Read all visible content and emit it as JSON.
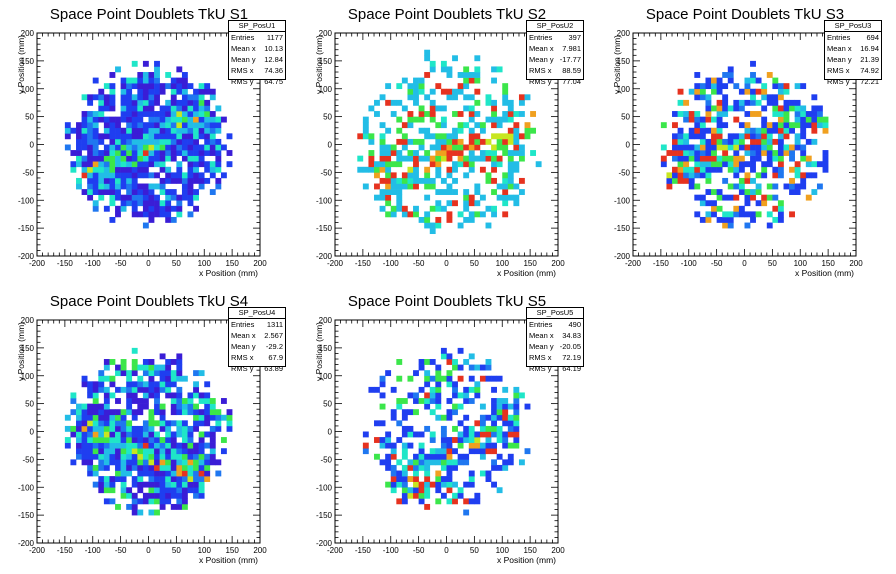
{
  "colors": {
    "palette": [
      "#3a1dd6",
      "#1f3ef0",
      "#1f77f0",
      "#22bde6",
      "#1fe6c8",
      "#3be64a",
      "#c8e61f",
      "#f0a01f",
      "#e6321f"
    ]
  },
  "chart_data": [
    {
      "type": "heatmap",
      "title": "Space Point Doublets TkU S1",
      "xlabel": "x Position (mm)",
      "ylabel": "y Position (mm)",
      "xlim": [
        -200,
        200
      ],
      "ylim": [
        -200,
        200
      ],
      "xticks": [
        "-200",
        "-150",
        "-100",
        "-50",
        "0",
        "50",
        "100",
        "150",
        "200"
      ],
      "yticks": [
        "-200",
        "-150",
        "-100",
        "-50",
        "0",
        "50",
        "100",
        "150",
        "200"
      ],
      "stats": {
        "name": "SP_PosU1",
        "rows": [
          [
            "Entries",
            "1177"
          ],
          [
            "Mean x",
            "10.13"
          ],
          [
            "Mean y",
            "12.84"
          ],
          [
            "RMS x",
            "74.36"
          ],
          [
            "RMS y",
            "64.75"
          ]
        ]
      },
      "seed": 11,
      "density": 0.72,
      "spread": 130,
      "band": {
        "angle": 0.55,
        "cx": 0,
        "cy": 0,
        "width": 40
      },
      "levels": [
        0,
        0,
        0,
        1,
        1,
        1,
        1,
        2,
        3,
        4
      ]
    },
    {
      "type": "heatmap",
      "title": "Space Point Doublets TkU S2",
      "xlabel": "x Position (mm)",
      "ylabel": "y Position (mm)",
      "xlim": [
        -200,
        200
      ],
      "ylim": [
        -200,
        200
      ],
      "xticks": [
        "-200",
        "-150",
        "-100",
        "-50",
        "0",
        "50",
        "100",
        "150",
        "200"
      ],
      "yticks": [
        "-200",
        "-150",
        "-100",
        "-50",
        "0",
        "50",
        "100",
        "150",
        "200"
      ],
      "stats": {
        "name": "SP_PosU2",
        "rows": [
          [
            "Entries",
            "397"
          ],
          [
            "Mean x",
            "7.981"
          ],
          [
            "Mean y",
            "-17.77"
          ],
          [
            "RMS x",
            "88.59"
          ],
          [
            "RMS y",
            "77.04"
          ]
        ]
      },
      "seed": 23,
      "density": 0.38,
      "spread": 150,
      "band": {
        "angle": 0.35,
        "cx": 0,
        "cy": -20,
        "width": 35
      },
      "levels": [
        3,
        3,
        3,
        3,
        3,
        4,
        5,
        5,
        8
      ]
    },
    {
      "type": "heatmap",
      "title": "Space Point Doublets TkU S3",
      "xlabel": "x Position (mm)",
      "ylabel": "y Position (mm)",
      "xlim": [
        -200,
        200
      ],
      "ylim": [
        -200,
        200
      ],
      "xticks": [
        "-200",
        "-150",
        "-100",
        "-50",
        "0",
        "50",
        "100",
        "150",
        "200"
      ],
      "yticks": [
        "-200",
        "-150",
        "-100",
        "-50",
        "0",
        "50",
        "100",
        "150",
        "200"
      ],
      "stats": {
        "name": "SP_PosU3",
        "rows": [
          [
            "Entries",
            "694"
          ],
          [
            "Mean x",
            "16.94"
          ],
          [
            "Mean y",
            "21.39"
          ],
          [
            "RMS x",
            "74.92"
          ],
          [
            "RMS y",
            "72.21"
          ]
        ]
      },
      "seed": 37,
      "density": 0.55,
      "spread": 135,
      "band": {
        "angle": 0.3,
        "cx": 20,
        "cy": 0,
        "width": 30
      },
      "levels": [
        1,
        1,
        1,
        1,
        2,
        3,
        4,
        5,
        7,
        8
      ]
    },
    {
      "type": "heatmap",
      "title": "Space Point Doublets TkU S4",
      "xlabel": "x Position (mm)",
      "ylabel": "y Position (mm)",
      "xlim": [
        -200,
        200
      ],
      "ylim": [
        -200,
        200
      ],
      "xticks": [
        "-200",
        "-150",
        "-100",
        "-50",
        "0",
        "50",
        "100",
        "150",
        "200"
      ],
      "yticks": [
        "-200",
        "-150",
        "-100",
        "-50",
        "0",
        "50",
        "100",
        "150",
        "200"
      ],
      "stats": {
        "name": "SP_PosU4",
        "rows": [
          [
            "Entries",
            "1311"
          ],
          [
            "Mean x",
            "2.567"
          ],
          [
            "Mean y",
            "-29.2"
          ],
          [
            "RMS x",
            "67.9"
          ],
          [
            "RMS y",
            "63.89"
          ]
        ]
      },
      "seed": 41,
      "density": 0.72,
      "spread": 130,
      "band": {
        "angle": -0.35,
        "cx": 0,
        "cy": -40,
        "width": 40
      },
      "levels": [
        0,
        0,
        0,
        1,
        1,
        1,
        2,
        3,
        4,
        5
      ]
    },
    {
      "type": "heatmap",
      "title": "Space Point Doublets TkU S5",
      "xlabel": "x Position (mm)",
      "ylabel": "y Position (mm)",
      "xlim": [
        -200,
        200
      ],
      "ylim": [
        -200,
        200
      ],
      "xticks": [
        "-200",
        "-150",
        "-100",
        "-50",
        "0",
        "50",
        "100",
        "150",
        "200"
      ],
      "yticks": [
        "-200",
        "-150",
        "-100",
        "-50",
        "0",
        "50",
        "100",
        "150",
        "200"
      ],
      "stats": {
        "name": "SP_PosU5",
        "rows": [
          [
            "Entries",
            "490"
          ],
          [
            "Mean x",
            "34.83"
          ],
          [
            "Mean y",
            "-20.05"
          ],
          [
            "RMS x",
            "72.19"
          ],
          [
            "RMS y",
            "64.19"
          ]
        ]
      },
      "seed": 53,
      "density": 0.42,
      "spread": 135,
      "band": {
        "angle": 0.6,
        "cx": 50,
        "cy": -20,
        "width": 30
      },
      "levels": [
        1,
        1,
        1,
        1,
        2,
        3,
        4,
        5,
        8
      ]
    }
  ]
}
